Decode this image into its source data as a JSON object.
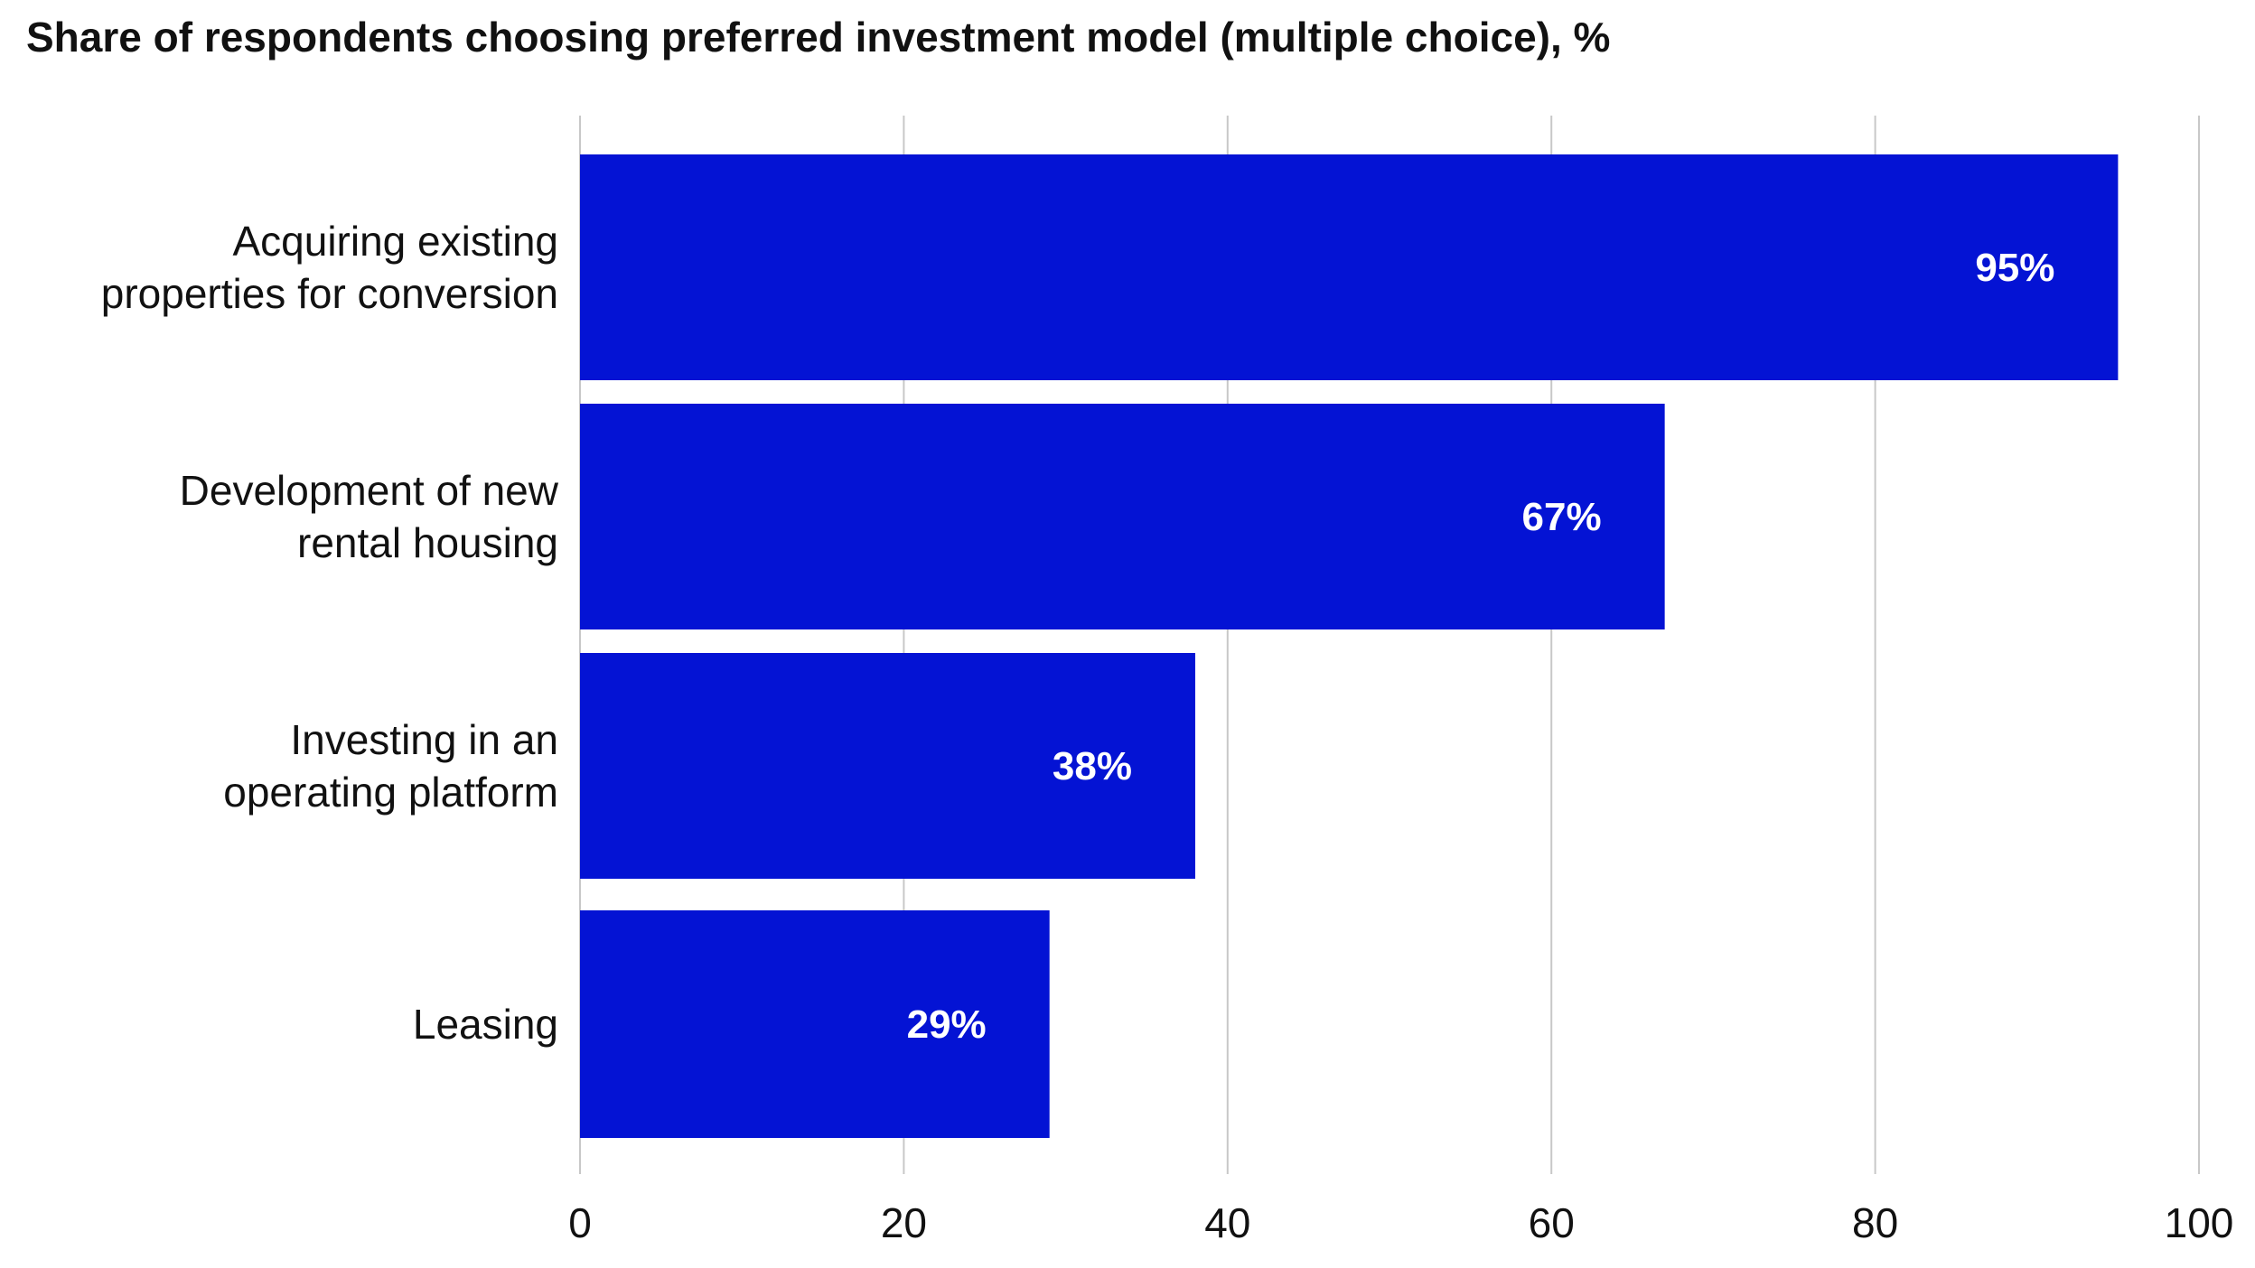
{
  "chart_data": {
    "type": "bar",
    "orientation": "horizontal",
    "title": "Share of respondents choosing preferred investment model (multiple choice), %",
    "categories": [
      [
        "Acquiring existing",
        "properties for conversion"
      ],
      [
        "Development of new",
        "rental housing"
      ],
      [
        "Investing in an",
        "operating platform"
      ],
      [
        "Leasing"
      ]
    ],
    "values": [
      95,
      67,
      38,
      29
    ],
    "data_labels": [
      "95%",
      "67%",
      "38%",
      "29%"
    ],
    "xlim": [
      0,
      100
    ],
    "xticks": [
      "0",
      "20",
      "40",
      "60",
      "80",
      "100"
    ],
    "grid": "vertical",
    "bar_color": "#0413d4",
    "label_color": "#ffffff",
    "grid_color": "#c8c8c8",
    "text_color": "#111111"
  }
}
